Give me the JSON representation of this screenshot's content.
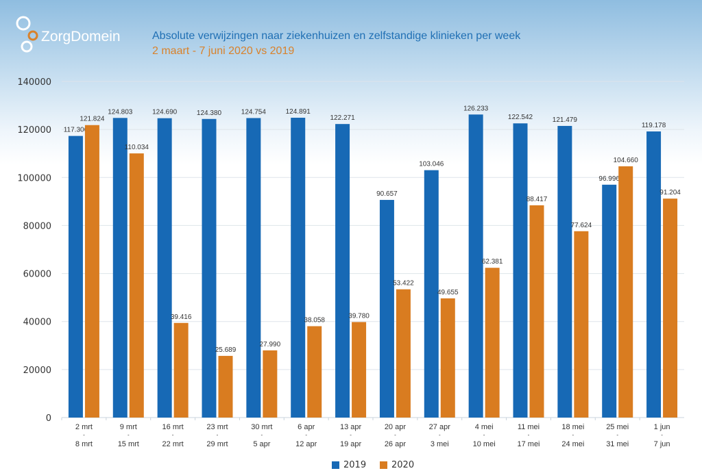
{
  "logo": {
    "text": "ZorgDomein"
  },
  "header": {
    "title": "Absolute verwijzingen naar ziekenhuizen en zelfstandige klinieken per week",
    "subtitle": "2 maart - 7 juni 2020 vs 2019"
  },
  "colors": {
    "2019": "#1769b5",
    "2020": "#d97c20",
    "title": "#1f6fb4",
    "subtitle": "#d9822b"
  },
  "chart_data": {
    "type": "bar",
    "categories": [
      [
        "2 mrt",
        "8 mrt"
      ],
      [
        "9 mrt",
        "15 mrt"
      ],
      [
        "16 mrt",
        "22 mrt"
      ],
      [
        "23 mrt",
        "29 mrt"
      ],
      [
        "30 mrt",
        "5 apr"
      ],
      [
        "6 apr",
        "12 apr"
      ],
      [
        "13 apr",
        "19 apr"
      ],
      [
        "20 apr",
        "26 apr"
      ],
      [
        "27 apr",
        "3 mei"
      ],
      [
        "4 mei",
        "10 mei"
      ],
      [
        "11 mei",
        "17 mei"
      ],
      [
        "18 mei",
        "24 mei"
      ],
      [
        "25 mei",
        "31 mei"
      ],
      [
        "1 jun",
        "7 jun"
      ]
    ],
    "series": [
      {
        "name": "2019",
        "values": [
          117306,
          124803,
          124690,
          124380,
          124754,
          124891,
          122271,
          90657,
          103046,
          126233,
          122542,
          121479,
          96996,
          119178
        ],
        "labels": [
          "117.306",
          "124.803",
          "124.690",
          "124.380",
          "124.754",
          "124.891",
          "122.271",
          "90.657",
          "103.046",
          "126.233",
          "122.542",
          "121.479",
          "96.996",
          "119.178"
        ]
      },
      {
        "name": "2020",
        "values": [
          121824,
          110034,
          39416,
          25689,
          27990,
          38058,
          39780,
          53422,
          49655,
          62381,
          88417,
          77624,
          104660,
          91204
        ],
        "labels": [
          "121.824",
          "110.034",
          "39.416",
          "25.689",
          "27.990",
          "38.058",
          "39.780",
          "53.422",
          "49.655",
          "62.381",
          "88.417",
          "77.624",
          "104.660",
          "91.204"
        ]
      }
    ],
    "yticks": [
      "0",
      "20000",
      "40000",
      "60000",
      "80000",
      "100000",
      "120000",
      "140000"
    ],
    "ylim": [
      0,
      140000
    ],
    "grid": true,
    "legend": "bottom-right"
  }
}
